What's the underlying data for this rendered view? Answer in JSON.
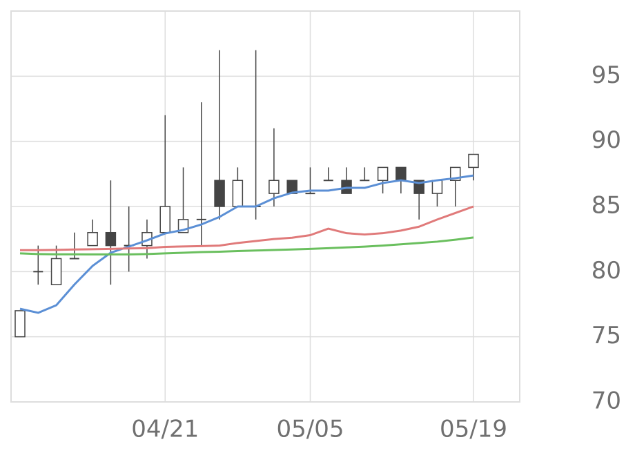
{
  "chart_data": {
    "type": "candlestick",
    "categories": [
      null,
      null,
      null,
      null,
      null,
      null,
      null,
      null,
      "04/21",
      null,
      null,
      null,
      null,
      null,
      null,
      null,
      "05/05",
      null,
      null,
      null,
      null,
      null,
      null,
      null,
      null,
      "05/19"
    ],
    "open": [
      75,
      80,
      79,
      81,
      82,
      83,
      82,
      82,
      83,
      83,
      84,
      87,
      85,
      85,
      86,
      87,
      86,
      87,
      87,
      87,
      87,
      88,
      87,
      86,
      87,
      88
    ],
    "high": [
      77,
      82,
      82,
      83,
      84,
      87,
      85,
      84,
      92,
      88,
      93,
      97,
      88,
      97,
      91,
      87,
      88,
      88,
      88,
      88,
      88,
      88,
      87,
      87,
      88,
      89
    ],
    "low": [
      75,
      79,
      79,
      81,
      82,
      79,
      80,
      81,
      83,
      83,
      82,
      84,
      85,
      84,
      85,
      86,
      86,
      87,
      86,
      87,
      86,
      86,
      84,
      85,
      85,
      87
    ],
    "close": [
      77,
      80,
      81,
      81,
      83,
      82,
      82,
      83,
      85,
      84,
      84,
      85,
      87,
      85,
      87,
      86,
      86,
      87,
      86,
      87,
      88,
      87,
      86,
      87,
      88,
      89
    ],
    "up_color": "#ffffff",
    "down_color": "#444444",
    "wick_color": "#444444",
    "series": [
      {
        "color": "#5b8fd5",
        "values": [
          77.15,
          76.84,
          77.42,
          79.01,
          80.44,
          81.45,
          81.92,
          82.4,
          82.93,
          83.2,
          83.62,
          84.2,
          85.0,
          85.0,
          85.63,
          86.06,
          86.22,
          86.22,
          86.43,
          86.43,
          86.8,
          87.01,
          86.8,
          87.01,
          87.17,
          87.38
        ]
      },
      {
        "color": "#e07a7a",
        "values": [
          81.65,
          81.65,
          81.67,
          81.7,
          81.72,
          81.75,
          81.78,
          81.8,
          81.9,
          81.93,
          81.96,
          82.0,
          82.2,
          82.35,
          82.5,
          82.6,
          82.8,
          83.3,
          82.95,
          82.85,
          82.95,
          83.15,
          83.45,
          84.0,
          84.5,
          85.0
        ]
      },
      {
        "color": "#6abf5e",
        "values": [
          81.4,
          81.35,
          81.33,
          81.33,
          81.32,
          81.32,
          81.32,
          81.35,
          81.4,
          81.45,
          81.5,
          81.53,
          81.58,
          81.62,
          81.66,
          81.7,
          81.75,
          81.8,
          81.86,
          81.92,
          82.0,
          82.1,
          82.2,
          82.3,
          82.45,
          82.62
        ]
      }
    ],
    "ylim": [
      70,
      100
    ],
    "yticks": [
      70,
      75,
      80,
      85,
      90,
      95
    ],
    "grid": true,
    "y_axis_side": "right"
  }
}
